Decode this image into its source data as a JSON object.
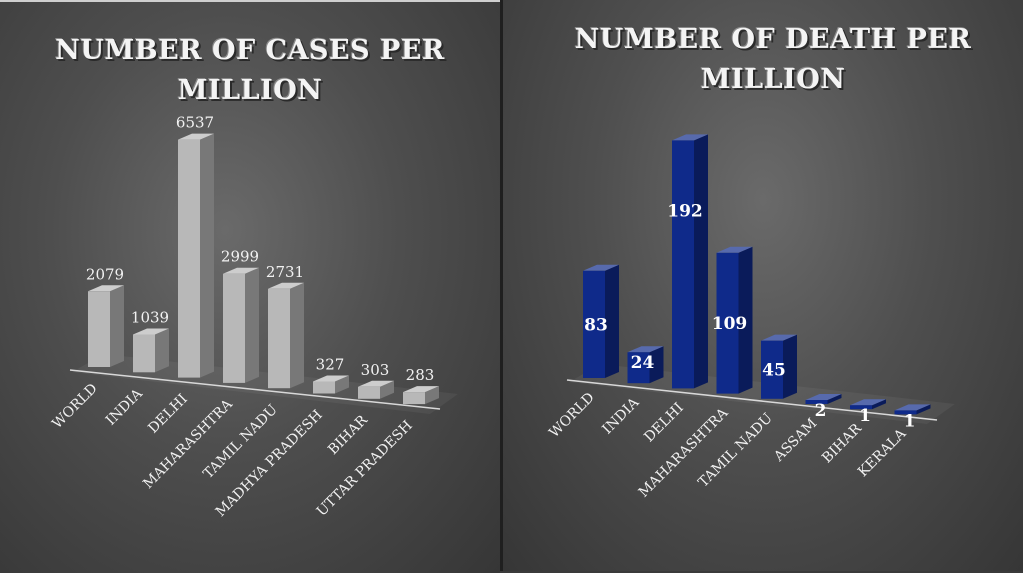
{
  "chart_data": [
    {
      "type": "bar",
      "title": "NUMBER OF CASES PER MILLION",
      "categories": [
        "WORLD",
        "INDIA",
        "DELHI",
        "MAHARASHTRA",
        "TAMIL NADU",
        "MADHYA PRADESH",
        "BIHAR",
        "UTTAR PRADESH"
      ],
      "values": [
        2079,
        1039,
        6537,
        2999,
        2731,
        327,
        303,
        283
      ],
      "bar_color": "#b8b8b8",
      "ylim": [
        0,
        6537
      ],
      "grid": false,
      "legend": "none",
      "style": "3d-column"
    },
    {
      "type": "bar",
      "title": "NUMBER OF DEATH PER MILLION",
      "categories": [
        "WORLD",
        "INDIA",
        "DELHI",
        "MAHARASHTRA",
        "TAMIL NADU",
        "ASSAM",
        "BIHAR",
        "KERALA"
      ],
      "values": [
        83,
        24,
        192,
        109,
        45,
        2,
        1,
        1
      ],
      "bar_color": "#0f2a8a",
      "ylim": [
        0,
        192
      ],
      "grid": false,
      "legend": "none",
      "style": "3d-column"
    }
  ]
}
